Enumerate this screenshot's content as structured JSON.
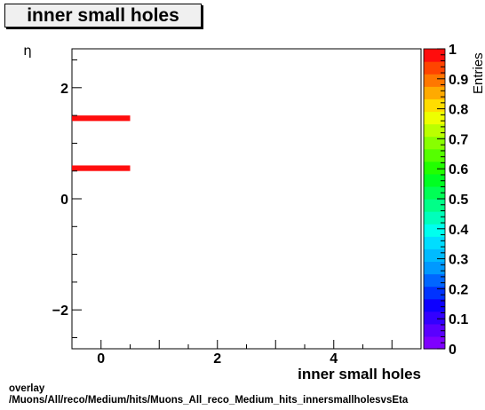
{
  "chart_data": {
    "type": "heatmap",
    "title": "inner small holes",
    "xlabel": "inner small holes",
    "ylabel": "η",
    "xlim": [
      -0.5,
      5.5
    ],
    "ylim": [
      -2.7,
      2.7
    ],
    "x_ticks": [
      0,
      2,
      4
    ],
    "y_ticks": [
      -2,
      0,
      2
    ],
    "colorbar": {
      "label": "Entries",
      "range": [
        0,
        1
      ],
      "ticks": [
        "0",
        "0.1",
        "0.2",
        "0.3",
        "0.4",
        "0.5",
        "0.6",
        "0.7",
        "0.8",
        "0.9",
        "1"
      ]
    },
    "cells": [
      {
        "x": [
          -0.5,
          0.5
        ],
        "y": [
          1.4,
          1.5
        ],
        "value": 1
      },
      {
        "x": [
          -0.5,
          0.5
        ],
        "y": [
          0.5,
          0.6
        ],
        "value": 1
      }
    ]
  },
  "footer": {
    "line1": "overlay",
    "line2": "/Muons/All/reco/Medium/hits/Muons_All_reco_Medium_hits_innersmallholesvsEta"
  },
  "colors": {
    "cell": "#ff0d0d",
    "palette": [
      "#7f00ff",
      "#5a00ff",
      "#3300ff",
      "#0d00ff",
      "#0033ff",
      "#0066ff",
      "#0099ff",
      "#00bbff",
      "#00ddff",
      "#00ffee",
      "#00ffbb",
      "#00ff88",
      "#00ff55",
      "#00ff22",
      "#22ff00",
      "#55ff00",
      "#88ff00",
      "#bbff00",
      "#eeff00",
      "#ffdd00",
      "#ffaa00",
      "#ff7700",
      "#ff4400",
      "#ff0d0d"
    ]
  }
}
